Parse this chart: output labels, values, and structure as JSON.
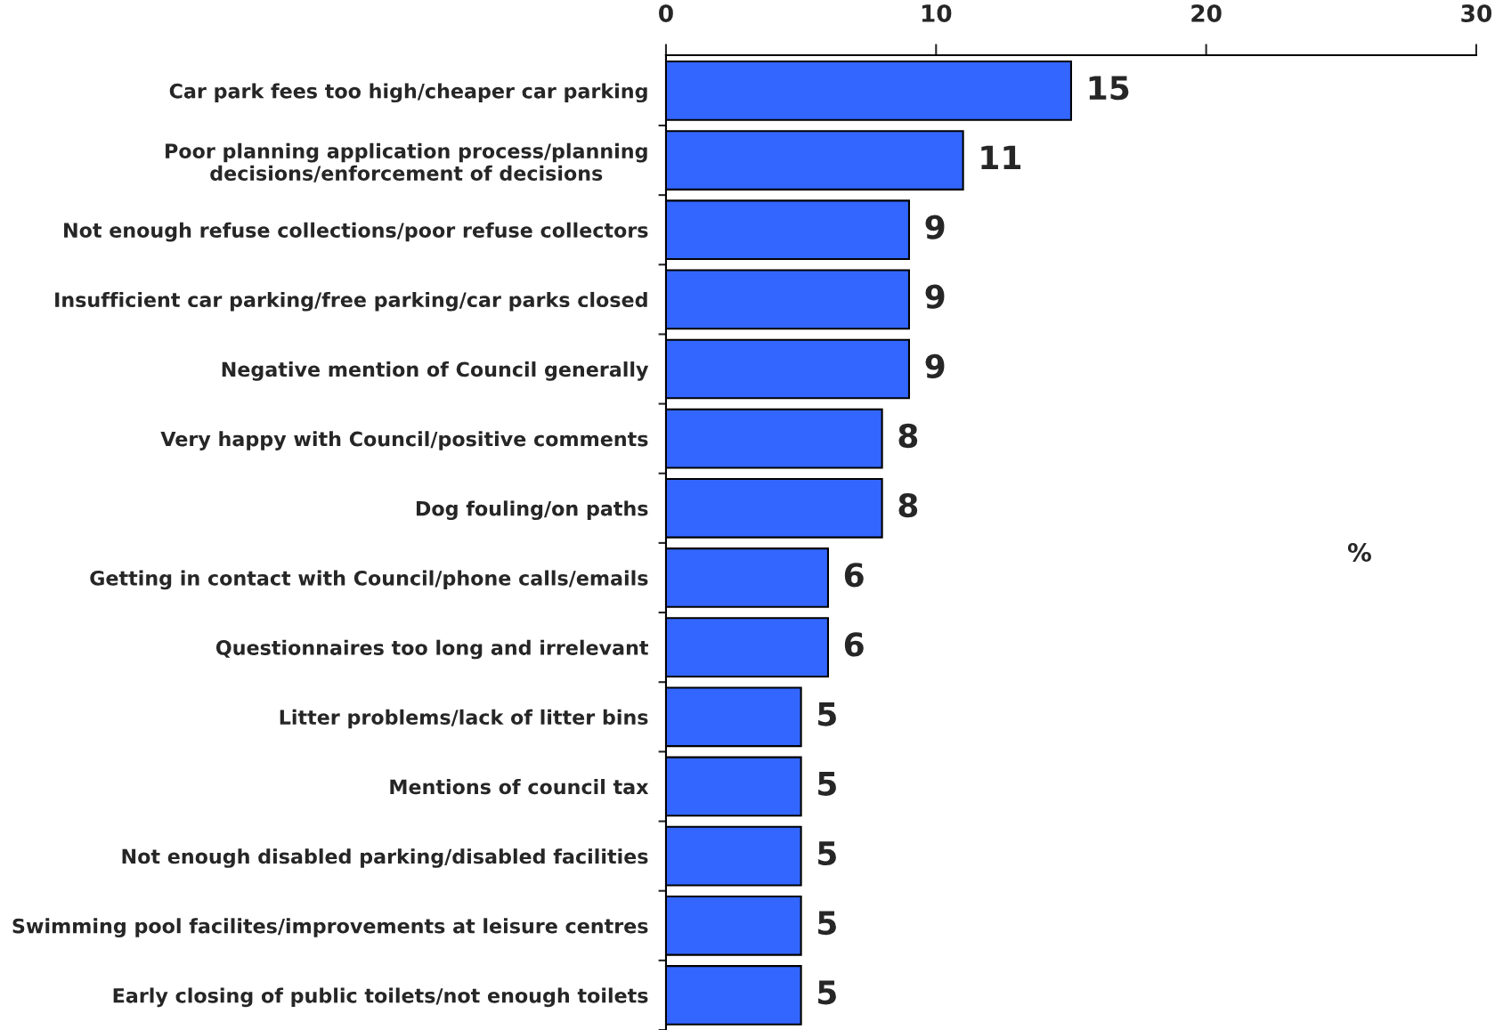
{
  "chart_data": {
    "type": "bar",
    "orientation": "horizontal",
    "categories": [
      "Car park fees too high/cheaper car parking",
      "Poor planning application process/planning\ndecisions/enforcement of decisions",
      "Not enough refuse collections/poor refuse collectors",
      "Insufficient car parking/free parking/car parks closed",
      "Negative mention of Council generally",
      "Very happy with Council/positive comments",
      "Dog fouling/on paths",
      "Getting in contact with Council/phone calls/emails",
      "Questionnaires too long and irrelevant",
      "Litter problems/lack of litter bins",
      "Mentions of council tax",
      "Not enough disabled parking/disabled facilities",
      "Swimming pool facilites/improvements at leisure centres",
      "Early closing of public toilets/not enough toilets"
    ],
    "values": [
      15,
      11,
      9,
      9,
      9,
      8,
      8,
      6,
      6,
      5,
      5,
      5,
      5,
      5
    ],
    "color": "#3366ff",
    "xlabel": "%",
    "xlim": [
      0,
      30
    ],
    "xticks": [
      0,
      10,
      20,
      30
    ],
    "data_labels": true
  }
}
